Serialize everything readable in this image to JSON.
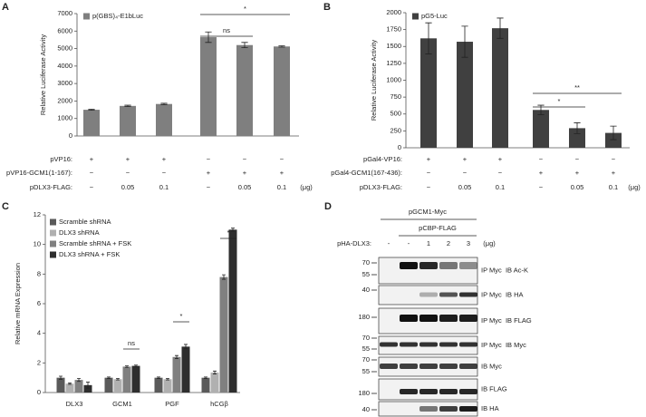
{
  "chart_data": [
    {
      "type": "bar",
      "panel_label": "A",
      "ylabel": "Relative Luciferase Activity",
      "categories": [
        null,
        null,
        null,
        null,
        null,
        null
      ],
      "series": [
        {
          "name": "p(GBS)₄-E1bLuc",
          "color": "#7f7f7f",
          "values": [
            1500,
            1720,
            1830,
            5650,
            5200,
            5120
          ],
          "errors": [
            30,
            40,
            40,
            300,
            150,
            40
          ]
        }
      ],
      "ylim": [
        0,
        7000
      ],
      "yticks": [
        0,
        1000,
        2000,
        3000,
        4000,
        5000,
        6000,
        7000
      ],
      "conditions": [
        {
          "label": "pVP16:",
          "values": [
            "+",
            "+",
            "+",
            "−",
            "−",
            "−"
          ]
        },
        {
          "label": "pVP16-GCM1(1-167):",
          "values": [
            "−",
            "−",
            "−",
            "+",
            "+",
            "+"
          ]
        },
        {
          "label": "pDLX3-FLAG:",
          "values": [
            "−",
            "0.05",
            "0.1",
            "−",
            "0.05",
            "0.1"
          ]
        }
      ],
      "unit_label": "(μg)",
      "annotations": [
        "ns",
        "*"
      ]
    },
    {
      "type": "bar",
      "panel_label": "B",
      "ylabel": "Relative Luciferase Activity",
      "categories": [
        null,
        null,
        null,
        null,
        null,
        null
      ],
      "series": [
        {
          "name": "pG5-Luc",
          "color": "#404040",
          "values": [
            1620,
            1570,
            1770,
            560,
            290,
            220
          ],
          "errors": [
            230,
            230,
            150,
            70,
            80,
            100
          ]
        }
      ],
      "ylim": [
        0,
        2000
      ],
      "yticks": [
        0,
        250,
        500,
        750,
        1000,
        1250,
        1500,
        1750,
        2000
      ],
      "conditions": [
        {
          "label": "pGal4-VP16:",
          "values": [
            "+",
            "+",
            "+",
            "−",
            "−",
            "−"
          ]
        },
        {
          "label": "pGal4-GCM1(167-436):",
          "values": [
            "−",
            "−",
            "−",
            "+",
            "+",
            "+"
          ]
        },
        {
          "label": "pDLX3-FLAG:",
          "values": [
            "−",
            "0.05",
            "0.1",
            "−",
            "0.05",
            "0.1"
          ]
        }
      ],
      "unit_label": "(μg)",
      "annotations": [
        "*",
        "**"
      ]
    },
    {
      "type": "bar",
      "panel_label": "C",
      "ylabel": "Relative mRNA Expression",
      "categories": [
        "DLX3",
        "GCM1",
        "PGF",
        "hCGβ"
      ],
      "series": [
        {
          "name": "Scramble shRNA",
          "color": "#5a5a5a",
          "values": [
            1.0,
            1.0,
            1.0,
            1.0
          ],
          "errors": [
            0.1,
            0.05,
            0.05,
            0.05
          ]
        },
        {
          "name": "DLX3 shRNA",
          "color": "#b0b0b0",
          "values": [
            0.6,
            0.9,
            0.9,
            1.35
          ],
          "errors": [
            0.05,
            0.05,
            0.05,
            0.1
          ]
        },
        {
          "name": "Scramble shRNA + FSK",
          "color": "#808080",
          "values": [
            0.85,
            1.75,
            2.4,
            7.8
          ],
          "errors": [
            0.1,
            0.05,
            0.1,
            0.15
          ]
        },
        {
          "name": "DLX3 shRNA + FSK",
          "color": "#2e2e2e",
          "values": [
            0.5,
            1.8,
            3.1,
            11.0
          ],
          "errors": [
            0.2,
            0.05,
            0.15,
            0.1
          ]
        }
      ],
      "ylim": [
        0,
        12
      ],
      "yticks": [
        0,
        2,
        4,
        6,
        8,
        10,
        12
      ],
      "annotations": [
        "ns",
        "*",
        "*"
      ]
    }
  ],
  "blot": {
    "panel_label": "D",
    "header": "pGCM1-Myc",
    "subheader": "pCBP-FLAG",
    "lane_title": "pHA-DLX3:",
    "lanes": [
      "-",
      "-",
      "1",
      "2",
      "3"
    ],
    "unit_label": "(μg)",
    "rows": [
      {
        "markers": [
          70,
          55
        ],
        "label": "IP Myc  IB Ac-K"
      },
      {
        "markers": [
          40
        ],
        "label": "IP Myc  IB HA"
      },
      {
        "markers": [
          180
        ],
        "label": "IP Myc  IB FLAG"
      },
      {
        "markers": [
          70,
          55
        ],
        "label": "IP Myc  IB Myc"
      },
      {
        "markers": [
          70,
          55
        ],
        "label": "IB Myc"
      },
      {
        "markers": [
          180
        ],
        "label": "IB FLAG"
      },
      {
        "markers": [
          40
        ],
        "label": "IB HA"
      }
    ]
  }
}
